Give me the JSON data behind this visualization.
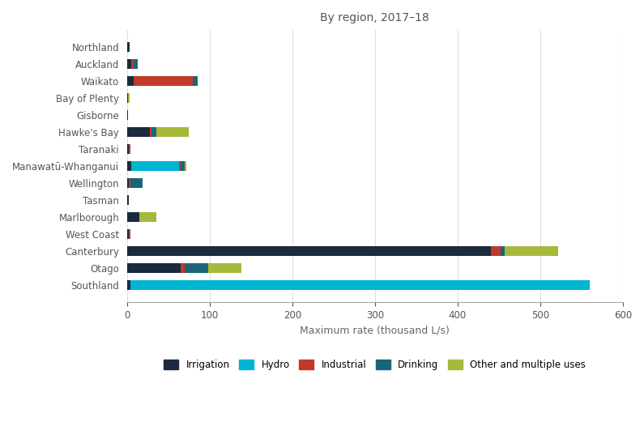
{
  "title": "By region, 2017–18",
  "xlabel": "Maximum rate (thousand L/s)",
  "regions": [
    "Northland",
    "Auckland",
    "Waikato",
    "Bay of Plenty",
    "Gisborne",
    "Hawke's Bay",
    "Taranaki",
    "Manawatū-Whanganui",
    "Wellington",
    "Tasman",
    "Marlborough",
    "West Coast",
    "Canterbury",
    "Otago",
    "Southland"
  ],
  "categories": [
    "Irrigation",
    "Hydro",
    "Industrial",
    "Drinking",
    "Other and multiple uses"
  ],
  "colors": [
    "#1b2a3e",
    "#00b5d1",
    "#c0392b",
    "#1a6678",
    "#a8b83a"
  ],
  "data": {
    "Irrigation": [
      3,
      5,
      8,
      1,
      1,
      28,
      2,
      5,
      2,
      2,
      15,
      2,
      440,
      65,
      4
    ],
    "Hydro": [
      0,
      0,
      0,
      0,
      0,
      0,
      0,
      58,
      0,
      0,
      0,
      0,
      0,
      0,
      556
    ],
    "Industrial": [
      0,
      3,
      72,
      0,
      0,
      2,
      2,
      2,
      2,
      0,
      0,
      2,
      12,
      5,
      0
    ],
    "Drinking": [
      0,
      5,
      5,
      0,
      0,
      5,
      0,
      5,
      15,
      0,
      0,
      0,
      5,
      28,
      0
    ],
    "Other and multiple uses": [
      0,
      0,
      0,
      2,
      0,
      40,
      0,
      2,
      0,
      0,
      20,
      0,
      65,
      40,
      0
    ]
  },
  "xlim": [
    0,
    600
  ],
  "xticks": [
    0,
    100,
    200,
    300,
    400,
    500,
    600
  ],
  "figsize": [
    7.95,
    5.47
  ],
  "dpi": 100
}
